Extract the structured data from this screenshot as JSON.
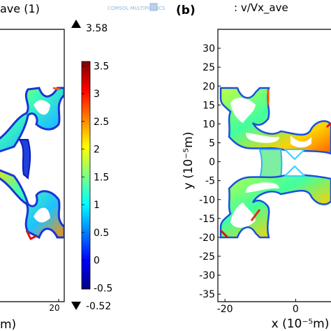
{
  "panel_a": {
    "title": "ave (1)",
    "watermark": "COMSOL MULTIPHYSICS",
    "colorbar": {
      "max_label": "3.58",
      "min_label": "-0.52",
      "max": 3.58,
      "min": -0.52,
      "ticks": [
        "3.5",
        "3",
        "2.5",
        "2",
        "1.5",
        "1",
        "0.5",
        "0",
        "-0.5"
      ],
      "colormap": [
        "#00007f",
        "#0000ff",
        "#0080ff",
        "#00ffff",
        "#80ff80",
        "#ffff00",
        "#ff8000",
        "#ff0000",
        "#7f0000"
      ]
    },
    "x_tick_partial": "20",
    "x_label_partial": "m)"
  },
  "panel_b": {
    "panel_label": "(b)",
    "title": ": v/Vx_ave"
  },
  "chart_data": [
    {
      "type": "heatmap",
      "panel": "a",
      "title": "ave (1)",
      "colorbar_range": [
        -0.52,
        3.58
      ],
      "colorbar_ticks": [
        3.5,
        3,
        2.5,
        2,
        1.5,
        1,
        0.5,
        0,
        -0.5
      ],
      "x_ticks_visible": [
        20
      ],
      "xlabel": "m)"
    },
    {
      "type": "heatmap",
      "panel": "b",
      "title": ": v/Vx_ave",
      "xlabel": "x (10⁻⁵m)",
      "ylabel": "y (10⁻⁵m)",
      "xlim": [
        -22,
        10
      ],
      "ylim": [
        -37,
        35
      ],
      "x_ticks": [
        -20,
        0
      ],
      "y_ticks": [
        30,
        25,
        20,
        15,
        10,
        5,
        0,
        -5,
        -10,
        -15,
        -20,
        -25,
        -30,
        -35
      ],
      "x_tick_labels": [
        "-20",
        "0"
      ],
      "y_tick_labels": [
        "30",
        "25",
        "20",
        "15",
        "10",
        "5",
        "0",
        "-5",
        "-10",
        "-15",
        "-20",
        "-25",
        "-30",
        "-35"
      ]
    }
  ]
}
